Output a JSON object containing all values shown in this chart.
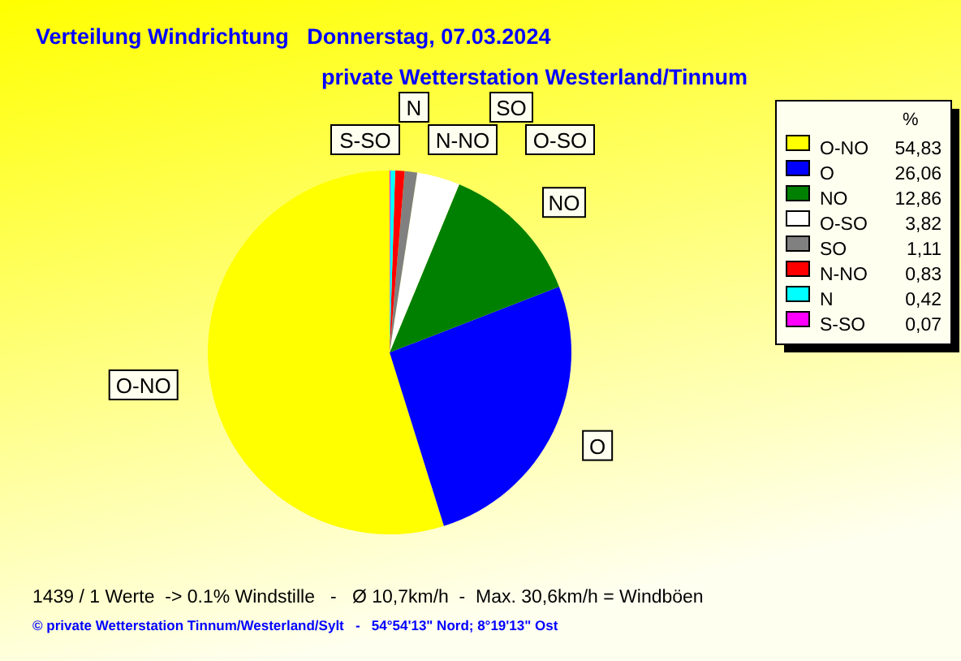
{
  "chart_data": {
    "type": "pie",
    "title": "Verteilung Windrichtung   Donnerstag, 07.03.2024",
    "subtitle": "private Wetterstation Westerland/Tinnum",
    "legend_title": "%",
    "categories": [
      "O-NO",
      "O",
      "NO",
      "O-SO",
      "SO",
      "N-NO",
      "N",
      "S-SO"
    ],
    "values": [
      54.83,
      26.06,
      12.86,
      3.82,
      1.11,
      0.83,
      0.42,
      0.07
    ],
    "value_labels": [
      "54,83",
      "26,06",
      "12,86",
      "3,82",
      "1,11",
      "0,83",
      "0,42",
      "0,07"
    ],
    "colors": [
      "#ffff00",
      "#0000ff",
      "#008000",
      "#ffffff",
      "#808080",
      "#ff0000",
      "#00ffff",
      "#ff00ff"
    ],
    "legend": "top right",
    "annotations": [
      "1439 / 1 Werte  -> 0.1% Windstille   -   Ø 10,7km/h  -  Max. 30,6km/h = Windböen",
      "© private Wetterstation Tinnum/Westerland/Sylt   -   54°54'13\" Nord; 8°19'13\" Ost"
    ]
  }
}
